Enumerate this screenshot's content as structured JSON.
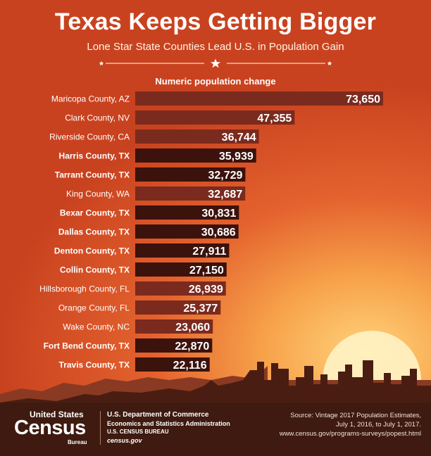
{
  "header": {
    "title": "Texas Keeps Getting Bigger",
    "subtitle": "Lone Star State Counties Lead U.S. in Population Gain"
  },
  "colors": {
    "bar_texas": "#3b120c",
    "bar_other": "#7b2a1e",
    "label_text": "#ffffff",
    "footer_bg": "#3e1a10"
  },
  "chart_data": {
    "type": "bar",
    "orientation": "horizontal",
    "title": "Numeric population change",
    "categories": [
      "Maricopa County, AZ",
      "Clark County, NV",
      "Riverside County, CA",
      "Harris County, TX",
      "Tarrant County, TX",
      "King County, WA",
      "Bexar County, TX",
      "Dallas County, TX",
      "Denton County, TX",
      "Collin County, TX",
      "Hillsborough County, FL",
      "Orange County, FL",
      "Wake County, NC",
      "Fort Bend County, TX",
      "Travis County, TX"
    ],
    "values": [
      73650,
      47355,
      36744,
      35939,
      32729,
      32687,
      30831,
      30686,
      27911,
      27150,
      26939,
      25377,
      23060,
      22870,
      22116
    ],
    "value_labels": [
      "73,650",
      "47,355",
      "36,744",
      "35,939",
      "32,729",
      "32,687",
      "30,831",
      "30,686",
      "27,911",
      "27,150",
      "26,939",
      "25,377",
      "23,060",
      "22,870",
      "22,116"
    ],
    "texas": [
      false,
      false,
      false,
      true,
      true,
      false,
      true,
      true,
      true,
      true,
      false,
      false,
      false,
      true,
      true
    ],
    "xlim": [
      0,
      73650
    ]
  },
  "footer": {
    "logo": {
      "united_states": "United States",
      "census": "Census",
      "bureau": "Bureau"
    },
    "dept_lines": [
      "U.S. Department of Commerce",
      "Economics and Statistics Administration",
      "U.S. CENSUS BUREAU",
      "census.gov"
    ],
    "source_lines": [
      "Source: Vintage 2017 Population Estimates,",
      "July 1, 2016, to July 1, 2017.",
      "www.census.gov/programs-surveys/popest.html"
    ]
  }
}
